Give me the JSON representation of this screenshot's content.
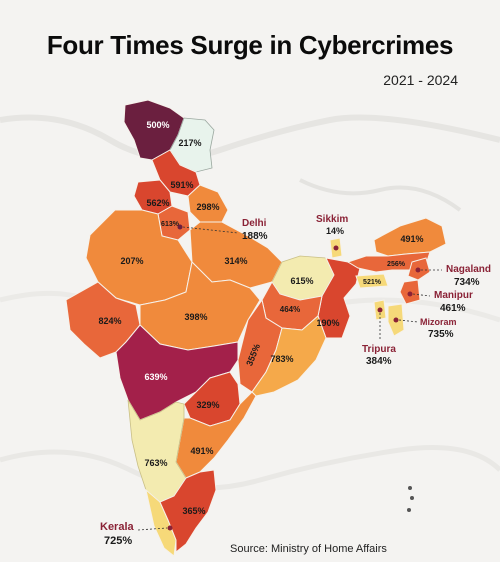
{
  "title": "Four Times Surge in Cybercrimes",
  "subtitle": "2021 - 2024",
  "source": "Source: Ministry of Home Affairs",
  "colors": {
    "darkest": "#6b1f3f",
    "maroon": "#a3204a",
    "red": "#d9462e",
    "orange_red": "#e8673a",
    "orange": "#f08a3c",
    "light_orange": "#f5a94a",
    "yellow": "#f6d979",
    "pale_yellow": "#f3ebb0",
    "mint": "#e8f3ec"
  },
  "map_labels": {
    "jk": "500%",
    "ladakh": "217%",
    "hp": "591%",
    "punjab": "562%",
    "uk": "298%",
    "haryana": "613%",
    "rajasthan": "207%",
    "up": "314%",
    "bihar": "615%",
    "arunachal": "491%",
    "assam": "256%",
    "meghalaya": "521%",
    "gujarat": "824%",
    "mp": "398%",
    "jharkhand": "464%",
    "wb": "190%",
    "chhattisgarh": "355%",
    "odisha": "783%",
    "maharashtra": "639%",
    "telangana": "329%",
    "ap": "491%",
    "karnataka": "763%",
    "tn": "365%"
  },
  "callouts": {
    "delhi": {
      "name": "Delhi",
      "value": "188%"
    },
    "sikkim": {
      "name": "Sikkim",
      "value": "14%"
    },
    "nagaland": {
      "name": "Nagaland",
      "value": "734%"
    },
    "manipur": {
      "name": "Manipur",
      "value": "461%"
    },
    "mizoram": {
      "name": "Mizoram",
      "value": "735%"
    },
    "tripura": {
      "name": "Tripura",
      "value": "384%"
    },
    "kerala": {
      "name": "Kerala",
      "value": "725%"
    }
  }
}
